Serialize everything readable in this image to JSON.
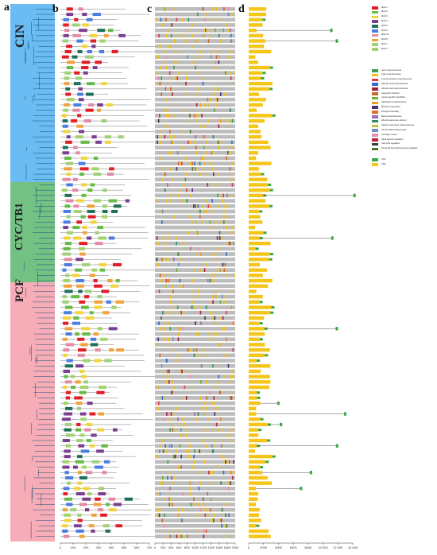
{
  "panels": {
    "a": "a",
    "b": "b",
    "c": "c",
    "d": "d"
  },
  "clades": [
    {
      "name": "CIN",
      "color": "#62b8f2"
    },
    {
      "name": "CYC/TB1",
      "color": "#6dbf7c"
    },
    {
      "name": "PCF",
      "color": "#f6a9b3"
    }
  ],
  "motif_legend": [
    {
      "name": "Motif 1",
      "color": "#e11d25"
    },
    {
      "name": "Motif 2",
      "color": "#66bb46"
    },
    {
      "name": "Motif 3",
      "color": "#f3d43a"
    },
    {
      "name": "Motif 4",
      "color": "#7b3f8f"
    },
    {
      "name": "Motif 5",
      "color": "#1f6f58"
    },
    {
      "name": "Motif 6",
      "color": "#4c7de0"
    },
    {
      "name": "Motif 10",
      "color": "#e58aa7"
    },
    {
      "name": "Motif 8",
      "color": "#f2a23a"
    },
    {
      "name": "Motif 7",
      "color": "#9fd07a"
    },
    {
      "name": "Motif 2",
      "color": "#a2d46c"
    }
  ],
  "element_legend": [
    {
      "name": "Auxin responsiveness",
      "color": "#3aa24a"
    },
    {
      "name": "Light responsiveness",
      "color": "#f0c020"
    },
    {
      "name": "Low-temperature responsiveness",
      "color": "#e0384a"
    },
    {
      "name": "Salicylic acid responsiveness",
      "color": "#2e6fd0"
    },
    {
      "name": "Abscisic acid responsiveness",
      "color": "#a0203a"
    },
    {
      "name": "Anaerobic induction",
      "color": "#c46a2e"
    },
    {
      "name": "Anoxic specific inducibility",
      "color": "#66b23a"
    },
    {
      "name": "Gibberellin-responsiveness",
      "color": "#e8a020"
    },
    {
      "name": "Meristem expression",
      "color": "#4a3070"
    },
    {
      "name": "Drought-inducibility",
      "color": "#e06a20"
    },
    {
      "name": "MeJA-responsiveness",
      "color": "#9a6ab0"
    },
    {
      "name": "Wound-responsive element",
      "color": "#2e8a6a"
    },
    {
      "name": "Defense and stress responsiveness",
      "color": "#c0c040"
    },
    {
      "name": "AT-rich DNA binding protein",
      "color": "#6a90d0"
    },
    {
      "name": "Circadian control",
      "color": "#f08ab0"
    },
    {
      "name": "Seed-specific regulation",
      "color": "#c02030"
    },
    {
      "name": "Cell cycle regulation",
      "color": "#3a3a3a"
    },
    {
      "name": "Flavonoid biosynthetic genes regulation",
      "color": "#4a7a20"
    }
  ],
  "gene_legend": [
    {
      "name": "UTR",
      "color": "#39a845"
    },
    {
      "name": "CDS",
      "color": "#f5c518"
    }
  ],
  "axes": {
    "b_ticks": [
      "0",
      "100",
      "200",
      "300",
      "400",
      "500",
      "600",
      "700"
    ],
    "c_ticks": [
      "0",
      "200",
      "400",
      "600",
      "800",
      "1000",
      "1200",
      "1400",
      "1600",
      "1800",
      "2000"
    ],
    "d_ticks": [
      "0",
      "2000",
      "4000",
      "6000",
      "8000",
      "10 000",
      "12 000",
      "14 000"
    ]
  }
}
